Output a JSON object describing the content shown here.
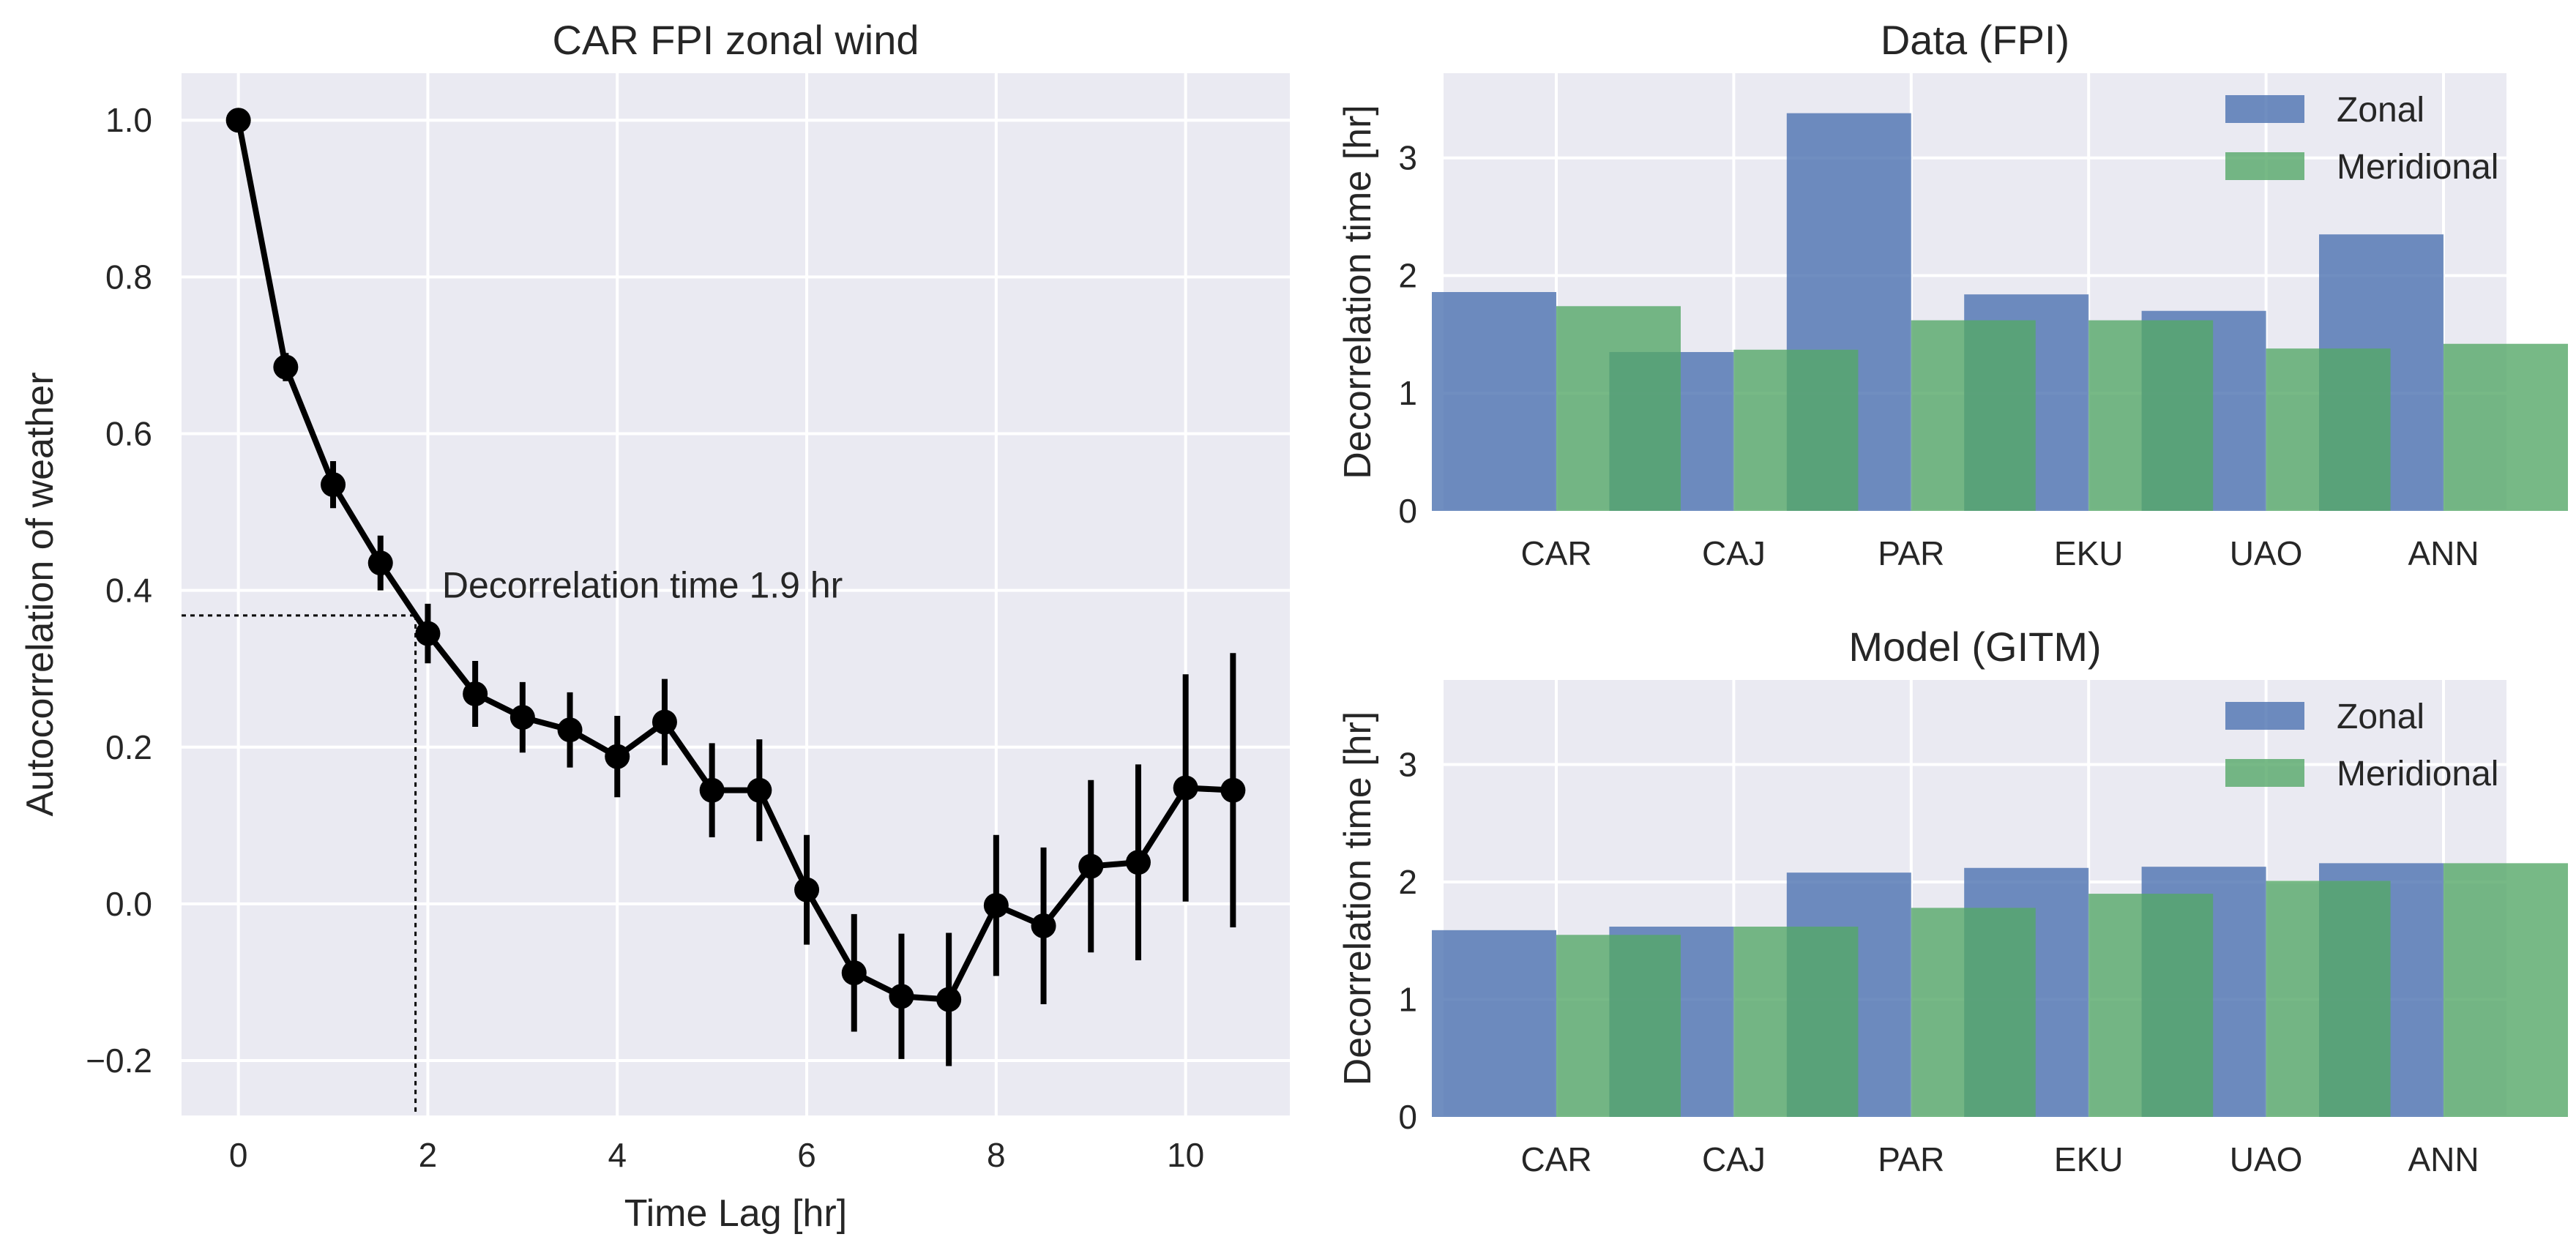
{
  "chart_data": [
    {
      "type": "line",
      "title": "CAR FPI zonal wind",
      "xlabel": "Time Lag [hr]",
      "ylabel": "Autocorrelation of weather",
      "xlim": [
        -0.6,
        11.1
      ],
      "ylim": [
        -0.27,
        1.06
      ],
      "x_ticks": [
        0,
        2,
        4,
        6,
        8,
        10
      ],
      "x_tick_labels": [
        "0",
        "2",
        "4",
        "6",
        "8",
        "10"
      ],
      "y_ticks": [
        -0.2,
        0.0,
        0.2,
        0.4,
        0.6,
        0.8,
        1.0
      ],
      "y_tick_labels": [
        "−0.2",
        "0.0",
        "0.2",
        "0.4",
        "0.6",
        "0.8",
        "1.0"
      ],
      "grid": true,
      "x": [
        0,
        0.5,
        1,
        1.5,
        2,
        2.5,
        3,
        3.5,
        4,
        4.5,
        5,
        5.5,
        6,
        6.5,
        7,
        7.5,
        8,
        8.5,
        9,
        9.5,
        10,
        10.5
      ],
      "y": [
        1.0,
        0.685,
        0.535,
        0.435,
        0.345,
        0.268,
        0.238,
        0.222,
        0.188,
        0.232,
        0.145,
        0.145,
        0.018,
        -0.088,
        -0.118,
        -0.122,
        -0.002,
        -0.028,
        0.048,
        0.053,
        0.148,
        0.145
      ],
      "yerr": [
        0,
        0.018,
        0.03,
        0.035,
        0.038,
        0.042,
        0.045,
        0.048,
        0.052,
        0.055,
        0.06,
        0.065,
        0.07,
        0.075,
        0.08,
        0.085,
        0.09,
        0.1,
        0.11,
        0.125,
        0.145,
        0.175
      ],
      "annotation": {
        "text": "Decorrelation time 1.9 hr",
        "decorrelation_time": 1.87,
        "threshold": 0.368,
        "text_x": 2.15,
        "text_y": 0.4
      }
    },
    {
      "type": "bar",
      "title": "Data (FPI)",
      "ylabel": "Decorrelation time [hr]",
      "categories": [
        "CAR",
        "CAJ",
        "PAR",
        "EKU",
        "UAO",
        "ANN"
      ],
      "series": [
        {
          "name": "Zonal",
          "values": [
            1.86,
            1.35,
            3.38,
            1.84,
            1.7,
            2.35
          ]
        },
        {
          "name": "Meridional",
          "values": [
            1.74,
            1.37,
            1.62,
            1.62,
            1.38,
            1.42
          ]
        }
      ],
      "ylim": [
        0,
        3.72
      ],
      "y_ticks": [
        0,
        1,
        2,
        3
      ],
      "y_tick_labels": [
        "0",
        "1",
        "2",
        "3"
      ],
      "grid": true,
      "legend": "top-right"
    },
    {
      "type": "bar",
      "title": "Model (GITM)",
      "ylabel": "Decorrelation time [hr]",
      "categories": [
        "CAR",
        "CAJ",
        "PAR",
        "EKU",
        "UAO",
        "ANN"
      ],
      "series": [
        {
          "name": "Zonal",
          "values": [
            1.59,
            1.62,
            2.08,
            2.12,
            2.13,
            2.16
          ]
        },
        {
          "name": "Meridional",
          "values": [
            1.55,
            1.62,
            1.78,
            1.9,
            2.01,
            2.16
          ]
        }
      ],
      "ylim": [
        0,
        3.72
      ],
      "y_ticks": [
        0,
        1,
        2,
        3
      ],
      "y_tick_labels": [
        "0",
        "1",
        "2",
        "3"
      ],
      "grid": true,
      "legend": "top-right"
    }
  ],
  "colors": {
    "zonal": "#4c72b0",
    "meridional": "#55a868",
    "line": "#000000",
    "plot_bg": "#eaeaf2",
    "grid": "#ffffff",
    "text": "#262626"
  }
}
